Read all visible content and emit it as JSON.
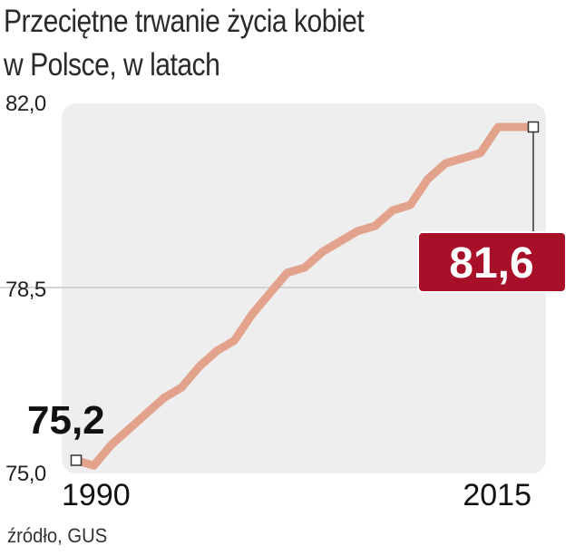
{
  "title_line1": "Przeciętne trwanie życia kobiet",
  "title_line2": "w Polsce, w latach",
  "source": "źródło, GUS",
  "colors": {
    "line": "#e2a28c",
    "badge": "#a8102a",
    "plot_bg": "#eeeeee",
    "marker": "#333333"
  },
  "chart_data": {
    "type": "line",
    "title": "Przeciętne trwanie życia kobiet w Polsce, w latach",
    "xlabel": "",
    "ylabel": "",
    "ylim": [
      75.0,
      82.0
    ],
    "xlim": [
      1990,
      2016
    ],
    "y_ticks": [
      "82,0",
      "78,5",
      "75,0"
    ],
    "x_ticks": [
      "1990",
      "2015"
    ],
    "grid": "horizontal line at 78,5",
    "x": [
      1990,
      1991,
      1992,
      1993,
      1994,
      1995,
      1996,
      1997,
      1998,
      1999,
      2000,
      2001,
      2002,
      2003,
      2004,
      2005,
      2006,
      2007,
      2008,
      2009,
      2010,
      2011,
      2012,
      2013,
      2014,
      2015,
      2016
    ],
    "values": [
      75.2,
      75.1,
      75.5,
      75.8,
      76.1,
      76.4,
      76.6,
      77.0,
      77.3,
      77.5,
      78.0,
      78.4,
      78.8,
      78.9,
      79.2,
      79.4,
      79.6,
      79.7,
      80.0,
      80.1,
      80.6,
      80.9,
      81.0,
      81.1,
      81.6,
      81.6,
      81.6
    ],
    "start_label": "75,2",
    "end_label": "81,6"
  }
}
